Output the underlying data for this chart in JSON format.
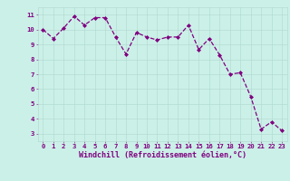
{
  "x": [
    0,
    1,
    2,
    3,
    4,
    5,
    6,
    7,
    8,
    9,
    10,
    11,
    12,
    13,
    14,
    15,
    16,
    17,
    18,
    19,
    20,
    21,
    22,
    23
  ],
  "y": [
    10.0,
    9.4,
    10.1,
    10.9,
    10.3,
    10.8,
    10.8,
    9.5,
    8.35,
    9.8,
    9.5,
    9.3,
    9.5,
    9.5,
    10.3,
    8.65,
    9.4,
    8.3,
    7.0,
    7.1,
    5.5,
    3.3,
    3.8,
    3.2
  ],
  "line_color": "#800080",
  "marker": "D",
  "marker_size": 2.0,
  "bg_color": "#cbf0e8",
  "grid_color": "#b0d8cc",
  "xlabel": "Windchill (Refroidissement éolien,°C)",
  "xlabel_color": "#800080",
  "ylim": [
    2.5,
    11.5
  ],
  "xlim": [
    -0.5,
    23.5
  ],
  "yticks": [
    3,
    4,
    5,
    6,
    7,
    8,
    9,
    10,
    11
  ],
  "xticks": [
    0,
    1,
    2,
    3,
    4,
    5,
    6,
    7,
    8,
    9,
    10,
    11,
    12,
    13,
    14,
    15,
    16,
    17,
    18,
    19,
    20,
    21,
    22,
    23
  ],
  "tick_color": "#800080",
  "tick_fontsize": 5.2,
  "xlabel_fontsize": 6.0,
  "linewidth": 0.9,
  "linestyle": "--"
}
